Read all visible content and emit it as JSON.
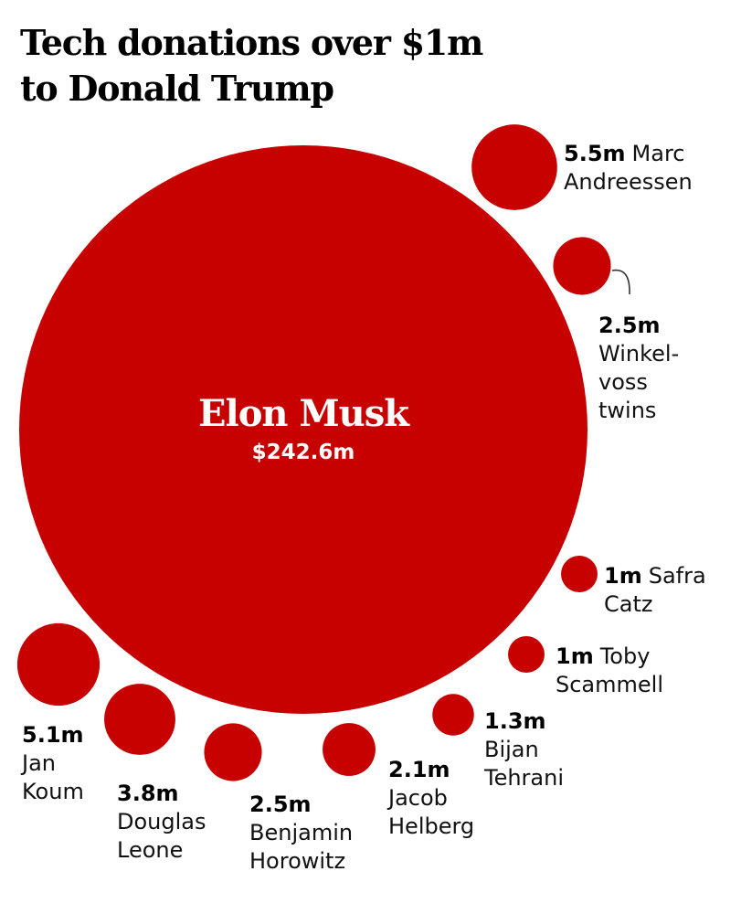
{
  "title_lines": [
    "Tech donations over $1m",
    "to Donald Trump"
  ],
  "colors": {
    "bubble": "#c70000",
    "leader": "#333333"
  },
  "chart_data": {
    "type": "bubble",
    "unit": "m",
    "title": "Tech donations over $1m to Donald Trump",
    "series": [
      {
        "name": "Elon Musk",
        "value": 242.6,
        "amount_label": "$242.6m",
        "name_lines": [
          "Elon Musk"
        ]
      },
      {
        "name": "Marc Andreessen",
        "value": 5.5,
        "amount_label": "5.5m",
        "name_lines": [
          "Marc",
          "Andreessen"
        ]
      },
      {
        "name": "Winklevoss twins",
        "value": 2.5,
        "amount_label": "2.5m",
        "name_lines": [
          "Winkel-",
          "voss",
          "twins"
        ]
      },
      {
        "name": "Safra Catz",
        "value": 1,
        "amount_label": "1m",
        "name_lines": [
          "Safra",
          "Catz"
        ]
      },
      {
        "name": "Toby Scammell",
        "value": 1,
        "amount_label": "1m",
        "name_lines": [
          "Toby",
          "Scammell"
        ]
      },
      {
        "name": "Bijan Tehrani",
        "value": 1.3,
        "amount_label": "1.3m",
        "name_lines": [
          "Bijan",
          "Tehrani"
        ]
      },
      {
        "name": "Jacob Helberg",
        "value": 2.1,
        "amount_label": "2.1m",
        "name_lines": [
          "Jacob",
          "Helberg"
        ]
      },
      {
        "name": "Benjamin Horowitz",
        "value": 2.5,
        "amount_label": "2.5m",
        "name_lines": [
          "Benjamin",
          "Horowitz"
        ]
      },
      {
        "name": "Douglas Leone",
        "value": 3.8,
        "amount_label": "3.8m",
        "name_lines": [
          "Douglas",
          "Leone"
        ]
      },
      {
        "name": "Jan Koum",
        "value": 5.1,
        "amount_label": "5.1m",
        "name_lines": [
          "Jan",
          "Koum"
        ]
      }
    ]
  }
}
